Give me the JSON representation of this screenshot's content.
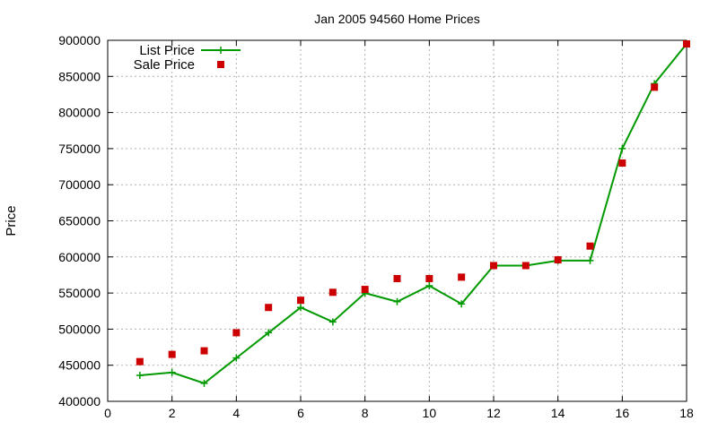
{
  "chart_data": {
    "type": "line",
    "title": "Jan 2005 94560 Home Prices",
    "xlabel": "",
    "ylabel": "Price",
    "xlim": [
      0,
      18
    ],
    "ylim": [
      400000,
      900000
    ],
    "xticks": [
      0,
      2,
      4,
      6,
      8,
      10,
      12,
      14,
      16,
      18
    ],
    "yticks": [
      400000,
      450000,
      500000,
      550000,
      600000,
      650000,
      700000,
      750000,
      800000,
      850000,
      900000
    ],
    "grid": true,
    "legend_position": "top-left",
    "series": [
      {
        "name": "List Price",
        "type": "line",
        "marker": "plus",
        "color": "#009900",
        "x": [
          1,
          2,
          3,
          4,
          5,
          6,
          7,
          8,
          9,
          10,
          11,
          12,
          13,
          14,
          15,
          16,
          17,
          18
        ],
        "y": [
          436000,
          440000,
          425000,
          460000,
          495000,
          530000,
          510000,
          550000,
          538000,
          560000,
          535000,
          588000,
          588000,
          595000,
          595000,
          750000,
          840000,
          895000
        ]
      },
      {
        "name": "Sale Price",
        "type": "scatter",
        "marker": "square",
        "color": "#cc0000",
        "x": [
          1,
          2,
          3,
          4,
          5,
          6,
          7,
          8,
          9,
          10,
          11,
          12,
          13,
          14,
          15,
          16,
          17,
          18
        ],
        "y": [
          455000,
          465000,
          470000,
          495000,
          530000,
          540000,
          551000,
          555000,
          570000,
          570000,
          572000,
          588000,
          588000,
          596000,
          615000,
          730000,
          835000,
          895000
        ]
      }
    ]
  }
}
